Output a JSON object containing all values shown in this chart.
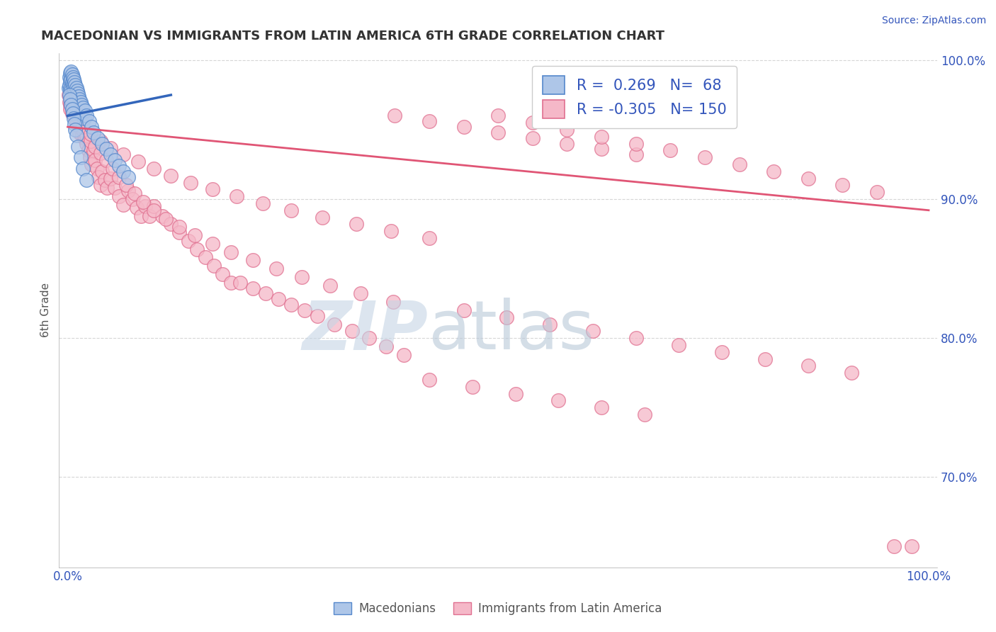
{
  "title": "MACEDONIAN VS IMMIGRANTS FROM LATIN AMERICA 6TH GRADE CORRELATION CHART",
  "source_text": "Source: ZipAtlas.com",
  "ylabel": "6th Grade",
  "xlim": [
    -0.01,
    1.01
  ],
  "ylim": [
    0.635,
    1.005
  ],
  "yticks": [
    0.7,
    0.8,
    0.9,
    1.0
  ],
  "ytick_labels": [
    "70.0%",
    "80.0%",
    "90.0%",
    "100.0%"
  ],
  "xtick_labels": [
    "0.0%",
    "100.0%"
  ],
  "blue_R": 0.269,
  "blue_N": 68,
  "pink_R": -0.305,
  "pink_N": 150,
  "blue_color": "#aec6e8",
  "pink_color": "#f5b8c8",
  "blue_edge": "#5588cc",
  "pink_edge": "#e07090",
  "blue_line_color": "#3366bb",
  "pink_line_color": "#e05575",
  "legend_label_blue": "Macedonians",
  "legend_label_pink": "Immigrants from Latin America",
  "watermark_zip": "ZIP",
  "watermark_atlas": "atlas",
  "watermark_color_zip": "#c5d5e5",
  "watermark_color_atlas": "#b8c8d8",
  "background_color": "#ffffff",
  "grid_color": "#cccccc",
  "title_color": "#333333",
  "blue_scatter_x": [
    0.001,
    0.002,
    0.002,
    0.003,
    0.003,
    0.003,
    0.004,
    0.004,
    0.004,
    0.005,
    0.005,
    0.005,
    0.005,
    0.006,
    0.006,
    0.006,
    0.007,
    0.007,
    0.007,
    0.008,
    0.008,
    0.008,
    0.009,
    0.009,
    0.009,
    0.01,
    0.01,
    0.01,
    0.011,
    0.011,
    0.012,
    0.012,
    0.013,
    0.013,
    0.014,
    0.014,
    0.015,
    0.015,
    0.016,
    0.017,
    0.018,
    0.019,
    0.02,
    0.022,
    0.025,
    0.028,
    0.03,
    0.035,
    0.04,
    0.045,
    0.05,
    0.055,
    0.06,
    0.065,
    0.07,
    0.002,
    0.003,
    0.004,
    0.005,
    0.006,
    0.007,
    0.008,
    0.009,
    0.01,
    0.012,
    0.015,
    0.018,
    0.022
  ],
  "blue_scatter_y": [
    0.98,
    0.988,
    0.982,
    0.991,
    0.985,
    0.979,
    0.992,
    0.986,
    0.978,
    0.99,
    0.984,
    0.976,
    0.97,
    0.988,
    0.982,
    0.975,
    0.986,
    0.98,
    0.972,
    0.984,
    0.978,
    0.97,
    0.982,
    0.976,
    0.968,
    0.98,
    0.974,
    0.966,
    0.978,
    0.97,
    0.976,
    0.968,
    0.974,
    0.966,
    0.972,
    0.964,
    0.97,
    0.962,
    0.968,
    0.96,
    0.966,
    0.958,
    0.964,
    0.96,
    0.956,
    0.952,
    0.948,
    0.944,
    0.94,
    0.936,
    0.932,
    0.928,
    0.924,
    0.92,
    0.916,
    0.975,
    0.972,
    0.968,
    0.965,
    0.962,
    0.958,
    0.954,
    0.95,
    0.946,
    0.938,
    0.93,
    0.922,
    0.914
  ],
  "pink_scatter_x": [
    0.001,
    0.002,
    0.003,
    0.004,
    0.005,
    0.005,
    0.006,
    0.007,
    0.008,
    0.009,
    0.01,
    0.01,
    0.011,
    0.012,
    0.013,
    0.014,
    0.015,
    0.016,
    0.017,
    0.018,
    0.019,
    0.02,
    0.022,
    0.024,
    0.026,
    0.028,
    0.03,
    0.032,
    0.034,
    0.036,
    0.038,
    0.04,
    0.043,
    0.046,
    0.05,
    0.055,
    0.06,
    0.065,
    0.07,
    0.075,
    0.08,
    0.085,
    0.09,
    0.095,
    0.1,
    0.11,
    0.12,
    0.13,
    0.14,
    0.15,
    0.16,
    0.17,
    0.18,
    0.19,
    0.2,
    0.215,
    0.23,
    0.245,
    0.26,
    0.275,
    0.29,
    0.31,
    0.33,
    0.35,
    0.37,
    0.39,
    0.003,
    0.006,
    0.01,
    0.014,
    0.018,
    0.022,
    0.027,
    0.032,
    0.038,
    0.045,
    0.052,
    0.06,
    0.068,
    0.078,
    0.088,
    0.1,
    0.114,
    0.13,
    0.148,
    0.168,
    0.19,
    0.215,
    0.242,
    0.272,
    0.305,
    0.34,
    0.378,
    0.005,
    0.01,
    0.018,
    0.027,
    0.038,
    0.05,
    0.065,
    0.082,
    0.1,
    0.12,
    0.143,
    0.168,
    0.196,
    0.227,
    0.26,
    0.296,
    0.335,
    0.376,
    0.42,
    0.38,
    0.42,
    0.46,
    0.5,
    0.54,
    0.58,
    0.62,
    0.66,
    0.5,
    0.54,
    0.58,
    0.62,
    0.66,
    0.7,
    0.74,
    0.78,
    0.82,
    0.86,
    0.9,
    0.94,
    0.98,
    0.46,
    0.51,
    0.56,
    0.61,
    0.66,
    0.71,
    0.76,
    0.81,
    0.86,
    0.91,
    0.96,
    0.42,
    0.47,
    0.52,
    0.57,
    0.62,
    0.67
  ],
  "pink_scatter_y": [
    0.975,
    0.97,
    0.968,
    0.966,
    0.972,
    0.964,
    0.968,
    0.965,
    0.962,
    0.958,
    0.97,
    0.955,
    0.96,
    0.956,
    0.952,
    0.948,
    0.955,
    0.95,
    0.946,
    0.95,
    0.944,
    0.945,
    0.94,
    0.935,
    0.93,
    0.925,
    0.935,
    0.928,
    0.922,
    0.916,
    0.91,
    0.92,
    0.914,
    0.908,
    0.915,
    0.908,
    0.902,
    0.896,
    0.906,
    0.9,
    0.894,
    0.888,
    0.895,
    0.888,
    0.895,
    0.888,
    0.882,
    0.876,
    0.87,
    0.864,
    0.858,
    0.852,
    0.846,
    0.84,
    0.84,
    0.836,
    0.832,
    0.828,
    0.824,
    0.82,
    0.816,
    0.81,
    0.805,
    0.8,
    0.794,
    0.788,
    0.965,
    0.962,
    0.958,
    0.954,
    0.95,
    0.946,
    0.942,
    0.938,
    0.933,
    0.928,
    0.922,
    0.916,
    0.91,
    0.904,
    0.898,
    0.892,
    0.886,
    0.88,
    0.874,
    0.868,
    0.862,
    0.856,
    0.85,
    0.844,
    0.838,
    0.832,
    0.826,
    0.962,
    0.957,
    0.952,
    0.947,
    0.942,
    0.937,
    0.932,
    0.927,
    0.922,
    0.917,
    0.912,
    0.907,
    0.902,
    0.897,
    0.892,
    0.887,
    0.882,
    0.877,
    0.872,
    0.96,
    0.956,
    0.952,
    0.948,
    0.944,
    0.94,
    0.936,
    0.932,
    0.96,
    0.955,
    0.95,
    0.945,
    0.94,
    0.935,
    0.93,
    0.925,
    0.92,
    0.915,
    0.91,
    0.905,
    0.65,
    0.82,
    0.815,
    0.81,
    0.805,
    0.8,
    0.795,
    0.79,
    0.785,
    0.78,
    0.775,
    0.65,
    0.77,
    0.765,
    0.76,
    0.755,
    0.75,
    0.745
  ],
  "pink_line_x0": 0.0,
  "pink_line_x1": 1.0,
  "pink_line_y0": 0.952,
  "pink_line_y1": 0.892,
  "blue_line_x0": 0.0,
  "blue_line_x1": 0.12,
  "blue_line_y0": 0.96,
  "blue_line_y1": 0.975
}
